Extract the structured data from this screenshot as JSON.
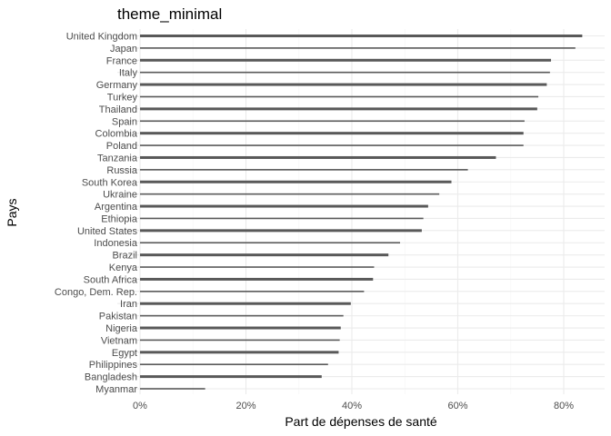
{
  "chart_data": {
    "type": "bar",
    "orientation": "horizontal",
    "title": "theme_minimal",
    "xlabel": "Part de dépenses de santé",
    "ylabel": "Pays",
    "x_tick_format": "percent",
    "xlim": [
      -0.02,
      0.87
    ],
    "x_ticks": [
      0,
      0.2,
      0.4,
      0.6,
      0.8
    ],
    "grid": true,
    "bar_color": "#595959",
    "grid_major_color": "#ebebeb",
    "grid_minor_color": "#f5f5f5",
    "categories": [
      "United Kingdom",
      "Japan",
      "France",
      "Italy",
      "Germany",
      "Turkey",
      "Thailand",
      "Spain",
      "Colombia",
      "Poland",
      "Tanzania",
      "Russia",
      "South Korea",
      "Ukraine",
      "Argentina",
      "Ethiopia",
      "United States",
      "Indonesia",
      "Brazil",
      "Kenya",
      "South Africa",
      "Congo, Dem. Rep.",
      "Iran",
      "Pakistan",
      "Nigeria",
      "Vietnam",
      "Egypt",
      "Philippines",
      "Bangladesh",
      "Myanmar"
    ],
    "values": [
      0.835,
      0.822,
      0.776,
      0.774,
      0.768,
      0.752,
      0.75,
      0.726,
      0.724,
      0.724,
      0.672,
      0.619,
      0.588,
      0.565,
      0.544,
      0.535,
      0.532,
      0.491,
      0.469,
      0.442,
      0.44,
      0.423,
      0.398,
      0.384,
      0.379,
      0.377,
      0.375,
      0.355,
      0.343,
      0.123
    ]
  }
}
